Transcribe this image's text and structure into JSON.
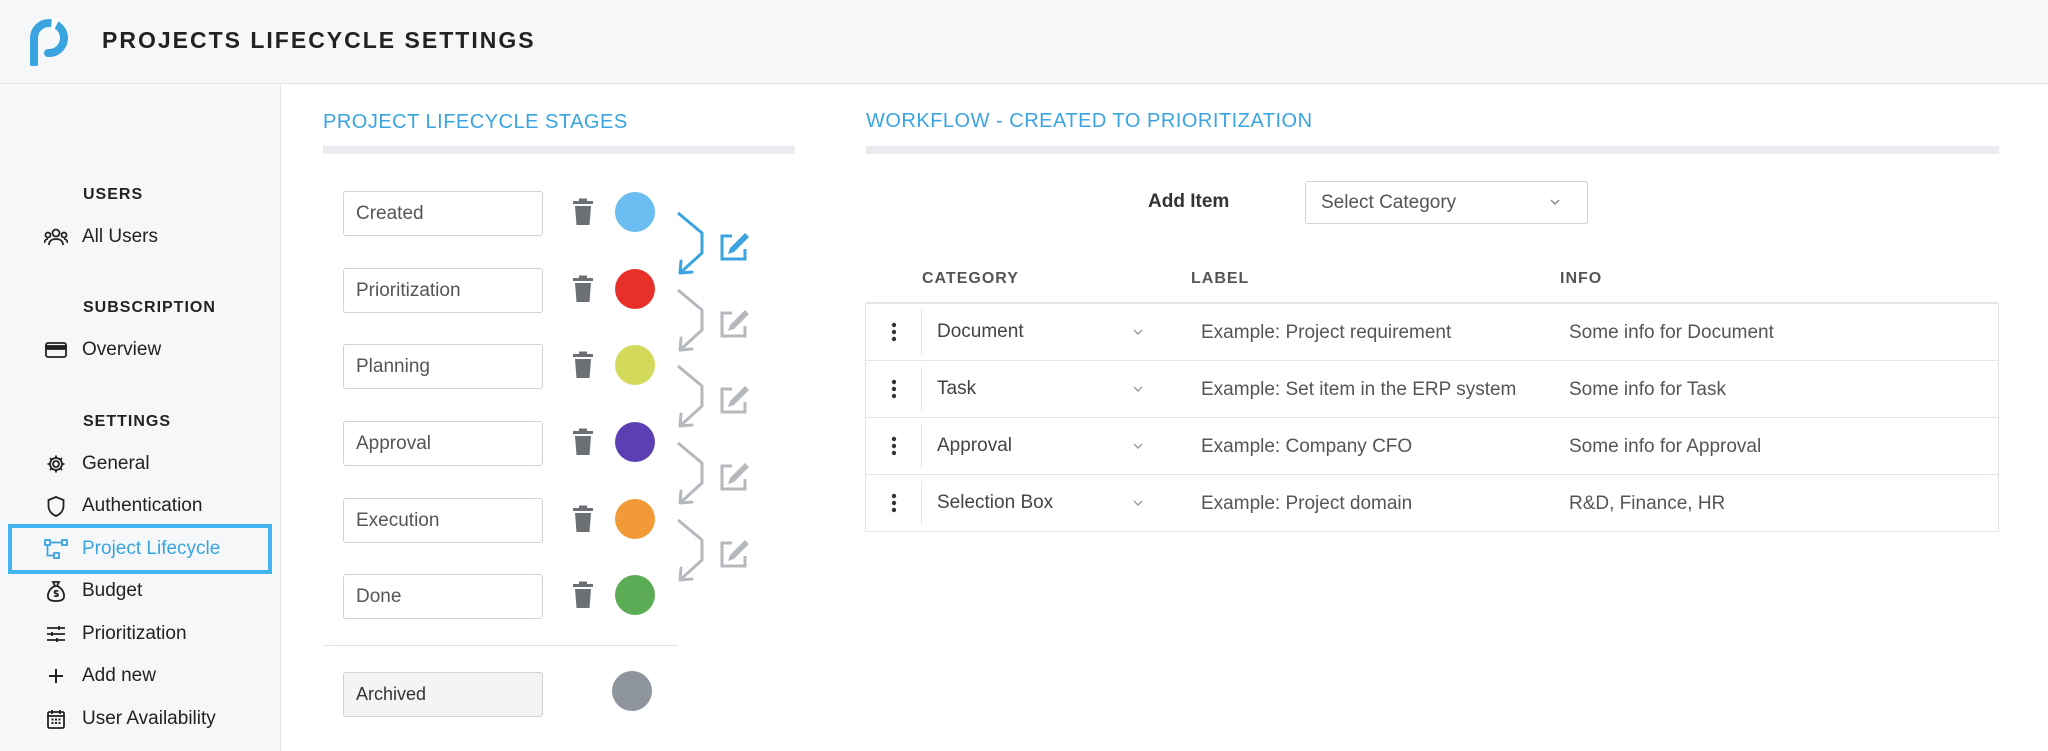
{
  "header": {
    "title": "PROJECTS LIFECYCLE SETTINGS",
    "logo_icon": "app-logo-icon"
  },
  "sidebar": {
    "sections": [
      {
        "title": "USERS",
        "items": [
          {
            "label": "All Users",
            "icon": "users-icon"
          }
        ]
      },
      {
        "title": "SUBSCRIPTION",
        "items": [
          {
            "label": "Overview",
            "icon": "credit-card-icon"
          }
        ]
      },
      {
        "title": "SETTINGS",
        "items": [
          {
            "label": "General",
            "icon": "gear-icon"
          },
          {
            "label": "Authentication",
            "icon": "shield-icon"
          },
          {
            "label": "Project Lifecycle",
            "icon": "flow-icon",
            "active": true
          },
          {
            "label": "Budget",
            "icon": "money-bag-icon"
          },
          {
            "label": "Prioritization",
            "icon": "sliders-icon"
          },
          {
            "label": "Add new",
            "icon": "plus-icon"
          },
          {
            "label": "User Availability",
            "icon": "calendar-icon"
          }
        ]
      }
    ]
  },
  "stages_panel": {
    "title": "PROJECT LIFECYCLE STAGES",
    "stages": [
      {
        "name": "Created",
        "color": "#6cbdf2"
      },
      {
        "name": "Prioritization",
        "color": "#e8302a"
      },
      {
        "name": "Planning",
        "color": "#d3d95a"
      },
      {
        "name": "Approval",
        "color": "#5c3fb3"
      },
      {
        "name": "Execution",
        "color": "#f29a38"
      },
      {
        "name": "Done",
        "color": "#5cab55"
      }
    ],
    "archived": {
      "name": "Archived",
      "color": "#8f959c"
    },
    "accent_color": "#3aa4e0",
    "inactive_color": "#b5b8bc"
  },
  "workflow_panel": {
    "title": "WORKFLOW - CREATED TO PRIORITIZATION",
    "add_item_label": "Add Item",
    "select_value": "Select Category",
    "columns": {
      "category": "CATEGORY",
      "label": "LABEL",
      "info": "INFO"
    },
    "rows": [
      {
        "category": "Document",
        "label": "Example: Project requirement",
        "info": "Some info for Document"
      },
      {
        "category": "Task",
        "label": "Example: Set item in the ERP system",
        "info": "Some info for Task"
      },
      {
        "category": "Approval",
        "label": "Example: Company CFO",
        "info": "Some info for Approval"
      },
      {
        "category": "Selection Box",
        "label": "Example: Project domain",
        "info": "R&D, Finance, HR"
      }
    ]
  }
}
